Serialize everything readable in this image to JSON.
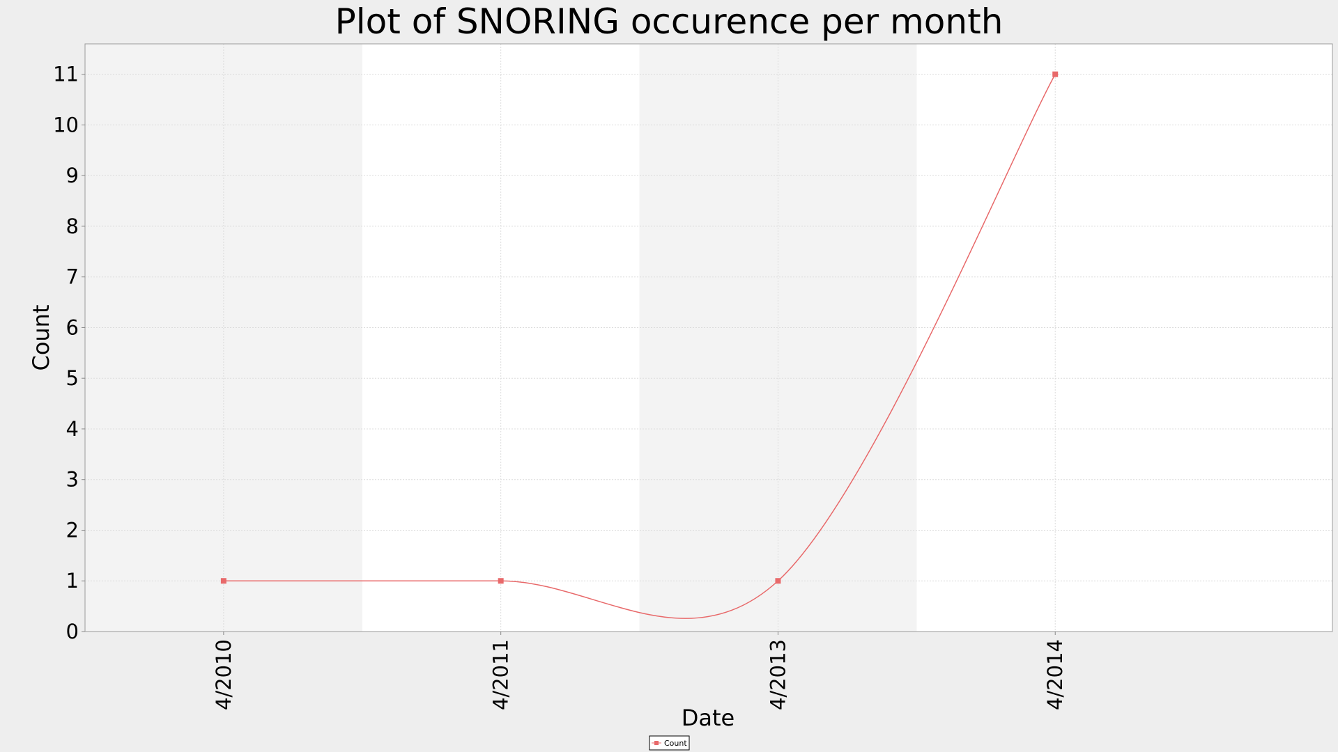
{
  "chart_data": {
    "type": "line",
    "title": "Plot of SNORING occurence per month",
    "xlabel": "Date",
    "ylabel": "Count",
    "categories": [
      "4/2010",
      "4/2011",
      "4/2013",
      "4/2014"
    ],
    "series": [
      {
        "name": "Count",
        "values": [
          1,
          1,
          1,
          11
        ],
        "color": "#e8696a"
      }
    ],
    "ylim": [
      0,
      11.6
    ],
    "yticks": [
      0,
      1,
      2,
      3,
      4,
      5,
      6,
      7,
      8,
      9,
      10,
      11
    ],
    "grid": true,
    "smoothed": true,
    "legend": "bottom-center",
    "band_colors": [
      "#f3f3f3",
      "#ffffff"
    ]
  }
}
